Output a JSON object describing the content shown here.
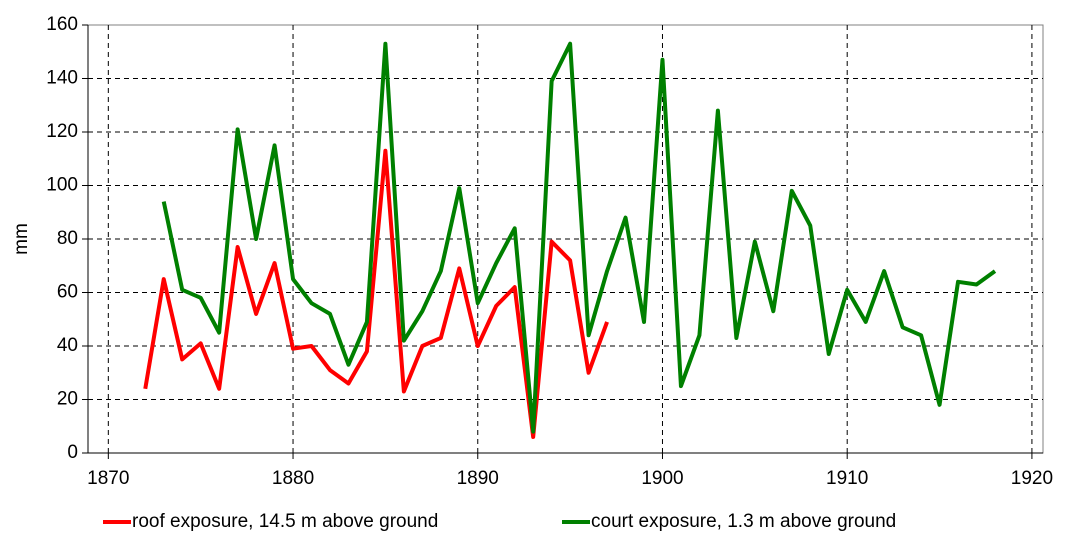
{
  "chart_data": {
    "type": "line",
    "ylabel": "mm",
    "xlim": [
      1868.9,
      1920.6
    ],
    "xticks": [
      1870,
      1880,
      1890,
      1900,
      1910,
      1920
    ],
    "ylim": [
      0,
      160
    ],
    "yticks": [
      0,
      20,
      40,
      60,
      80,
      100,
      120,
      140,
      160
    ],
    "grid": true,
    "legend": "bottom",
    "series": [
      {
        "name": "roof exposure, 14.5 m above ground",
        "color": "#ff0000",
        "x": [
          1872,
          1873,
          1874,
          1875,
          1876,
          1877,
          1878,
          1879,
          1880,
          1881,
          1882,
          1883,
          1884,
          1885,
          1886,
          1887,
          1888,
          1889,
          1890,
          1891,
          1892,
          1893,
          1894,
          1895,
          1896,
          1897
        ],
        "values": [
          24,
          65,
          35,
          41,
          24,
          77,
          52,
          71,
          39,
          40,
          31,
          26,
          38,
          113,
          23,
          40,
          43,
          69,
          40,
          55,
          62,
          6,
          79,
          72,
          30,
          49
        ]
      },
      {
        "name": "court exposure, 1.3 m above ground",
        "color": "#008000",
        "x": [
          1873,
          1874,
          1875,
          1876,
          1877,
          1878,
          1879,
          1880,
          1881,
          1882,
          1883,
          1884,
          1885,
          1886,
          1887,
          1888,
          1889,
          1890,
          1891,
          1892,
          1893,
          1894,
          1895,
          1896,
          1897,
          1898,
          1899,
          1900,
          1901,
          1902,
          1903,
          1904,
          1905,
          1906,
          1907,
          1908,
          1909,
          1910,
          1911,
          1912,
          1913,
          1914,
          1915,
          1916,
          1917,
          1918
        ],
        "values": [
          94,
          61,
          58,
          45,
          121,
          80,
          115,
          65,
          56,
          52,
          33,
          49,
          153,
          42,
          53,
          68,
          99,
          56,
          71,
          84,
          8,
          139,
          153,
          44,
          68,
          88,
          49,
          147,
          25,
          44,
          128,
          43,
          79,
          53,
          98,
          85,
          37,
          61,
          49,
          68,
          47,
          44,
          18,
          64,
          63,
          68
        ]
      }
    ]
  }
}
